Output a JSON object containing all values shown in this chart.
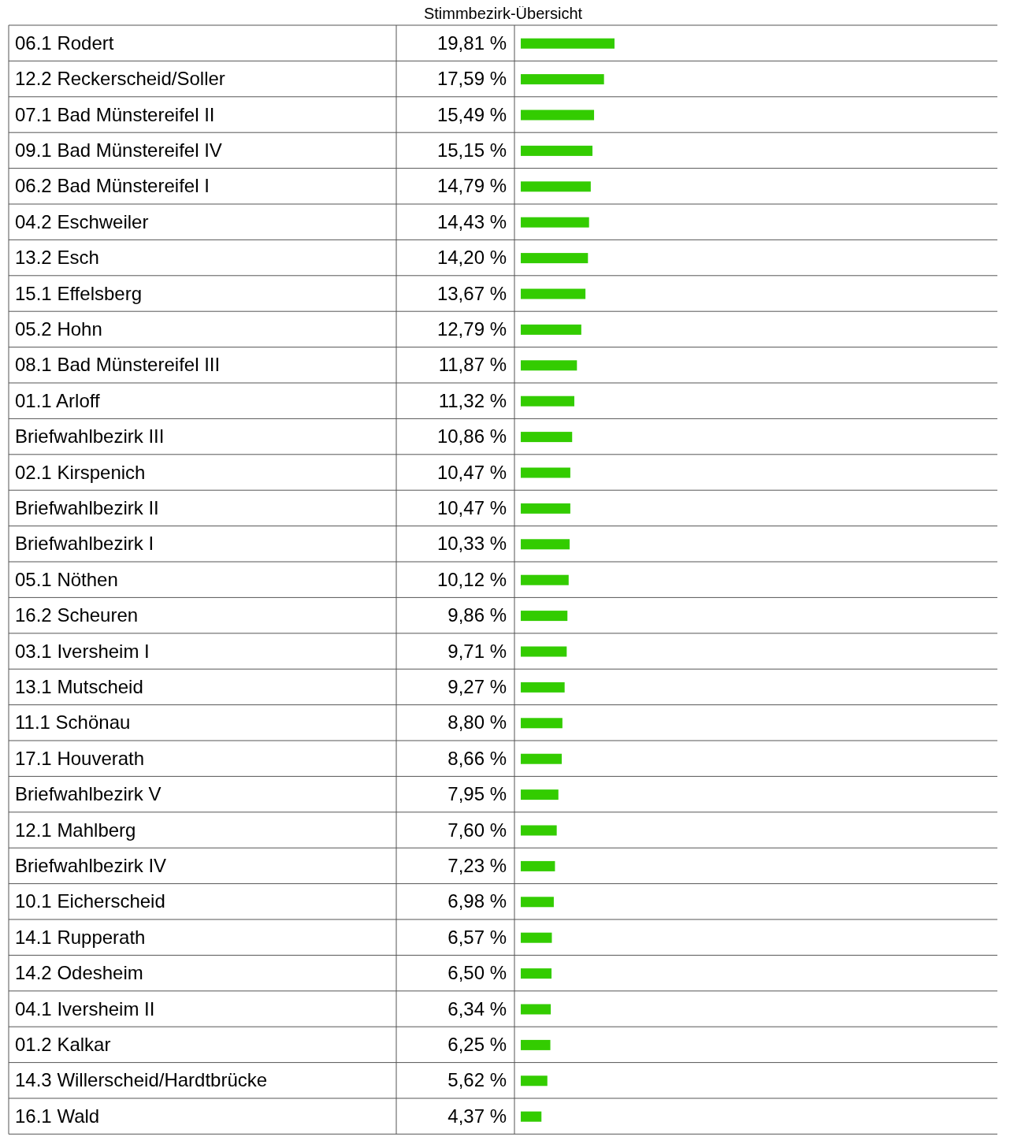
{
  "chart_data": {
    "type": "bar",
    "orientation": "horizontal",
    "title": "Stimmbezirk-Übersicht",
    "color": "#33cc00",
    "categories": [
      "06.1 Rodert",
      "12.2 Reckerscheid/Soller",
      "07.1 Bad Münstereifel II",
      "09.1 Bad Münstereifel IV",
      "06.2 Bad Münstereifel I",
      "04.2 Eschweiler",
      "13.2 Esch",
      "15.1 Effelsberg",
      "05.2 Hohn",
      "08.1 Bad Münstereifel III",
      "01.1 Arloff",
      "Briefwahlbezirk III",
      "02.1 Kirspenich",
      "Briefwahlbezirk II",
      "Briefwahlbezirk I",
      "05.1 Nöthen",
      "16.2 Scheuren",
      "03.1 Iversheim I",
      "13.1 Mutscheid",
      "11.1 Schönau",
      "17.1 Houverath",
      "Briefwahlbezirk V",
      "12.1 Mahlberg",
      "Briefwahlbezirk IV",
      "10.1 Eicherscheid",
      "14.1 Rupperath",
      "14.2 Odesheim",
      "04.1 Iversheim II",
      "01.2 Kalkar",
      "14.3 Willerscheid/Hardtbrücke",
      "16.1 Wald"
    ],
    "values": [
      19.81,
      17.59,
      15.49,
      15.15,
      14.79,
      14.43,
      14.2,
      13.67,
      12.79,
      11.87,
      11.32,
      10.86,
      10.47,
      10.47,
      10.33,
      10.12,
      9.86,
      9.71,
      9.27,
      8.8,
      8.66,
      7.95,
      7.6,
      7.23,
      6.98,
      6.57,
      6.5,
      6.34,
      6.25,
      5.62,
      4.37
    ],
    "value_labels": [
      "19,81 %",
      "17,59 %",
      "15,49 %",
      "15,15 %",
      "14,79 %",
      "14,43 %",
      "14,20 %",
      "13,67 %",
      "12,79 %",
      "11,87 %",
      "11,32 %",
      "10,86 %",
      "10,47 %",
      "10,47 %",
      "10,33 %",
      "10,12 %",
      "9,86 %",
      "9,71 %",
      "9,27 %",
      "8,80 %",
      "8,66 %",
      "7,95 %",
      "7,60 %",
      "7,23 %",
      "6,98 %",
      "6,57 %",
      "6,50 %",
      "6,34 %",
      "6,25 %",
      "5,62 %",
      "4,37 %"
    ]
  }
}
